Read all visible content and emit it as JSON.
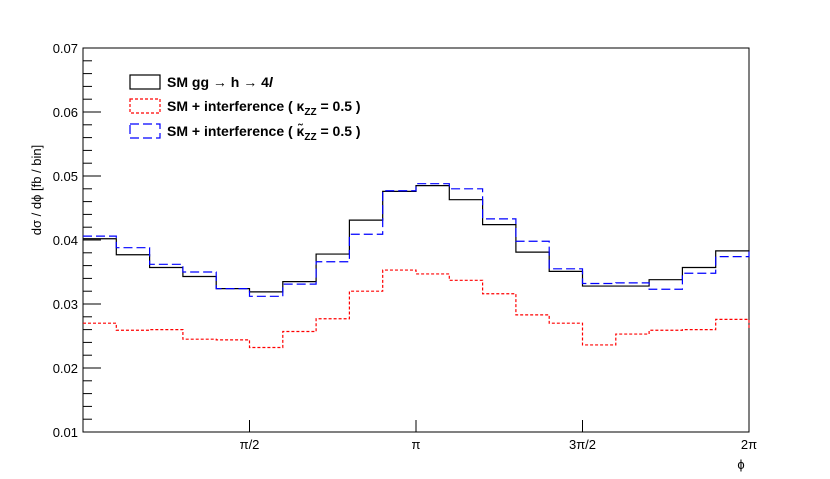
{
  "chart_data": {
    "type": "line",
    "step": true,
    "xlabel": "ϕ",
    "ylabel": "dσ / dϕ  [fb / bin]",
    "xlim": [
      0,
      6.2832
    ],
    "ylim": [
      0.01,
      0.07
    ],
    "x_ticks": [
      {
        "value": 1.5708,
        "label": "π/2"
      },
      {
        "value": 3.1416,
        "label": "π"
      },
      {
        "value": 4.7124,
        "label": "3π/2"
      },
      {
        "value": 6.2832,
        "label": "2π"
      }
    ],
    "y_ticks": [
      {
        "value": 0.01,
        "label": "0.01"
      },
      {
        "value": 0.02,
        "label": "0.02"
      },
      {
        "value": 0.03,
        "label": "0.03"
      },
      {
        "value": 0.04,
        "label": "0.04"
      },
      {
        "value": 0.05,
        "label": "0.05"
      },
      {
        "value": 0.06,
        "label": "0.06"
      },
      {
        "value": 0.07,
        "label": "0.07"
      }
    ],
    "bins": 20,
    "series": [
      {
        "name": "SM gg → h → 4l",
        "color": "#000000",
        "style": "solid",
        "values": [
          0.0402,
          0.0377,
          0.0357,
          0.0343,
          0.0324,
          0.0319,
          0.0335,
          0.0378,
          0.0431,
          0.0476,
          0.0485,
          0.0463,
          0.0424,
          0.0381,
          0.0351,
          0.0328,
          0.0328,
          0.0338,
          0.0357,
          0.0383,
          0.0382
        ]
      },
      {
        "name": "SM + interference ( κZZ = 0.5 )",
        "color": "#ff0000",
        "style": "dotted",
        "values": [
          0.027,
          0.0259,
          0.026,
          0.0245,
          0.0244,
          0.0232,
          0.0257,
          0.0277,
          0.032,
          0.0353,
          0.0347,
          0.0337,
          0.0316,
          0.0283,
          0.027,
          0.0236,
          0.0253,
          0.0259,
          0.026,
          0.0276,
          0.026
        ]
      },
      {
        "name": "SM + interference ( κ̃ZZ = 0.5 )",
        "color": "#0000ff",
        "style": "dashed",
        "values": [
          0.0406,
          0.0388,
          0.0362,
          0.035,
          0.0324,
          0.0312,
          0.0331,
          0.0366,
          0.0409,
          0.0477,
          0.0488,
          0.048,
          0.0433,
          0.0398,
          0.0355,
          0.0332,
          0.0333,
          0.0323,
          0.0348,
          0.0374,
          0.0382
        ]
      }
    ],
    "legend": {
      "placement": "top-left",
      "entries": [
        {
          "main": "SM gg → h → 4",
          "italic": "l",
          "sub": ""
        },
        {
          "main": "SM + interference (  κ",
          "sub": "ZZ",
          "tail": " = 0.5 )"
        },
        {
          "main": "SM + interference (  κ̃",
          "sub": "ZZ",
          "tail": " = 0.5 )"
        }
      ]
    },
    "grid": false
  }
}
